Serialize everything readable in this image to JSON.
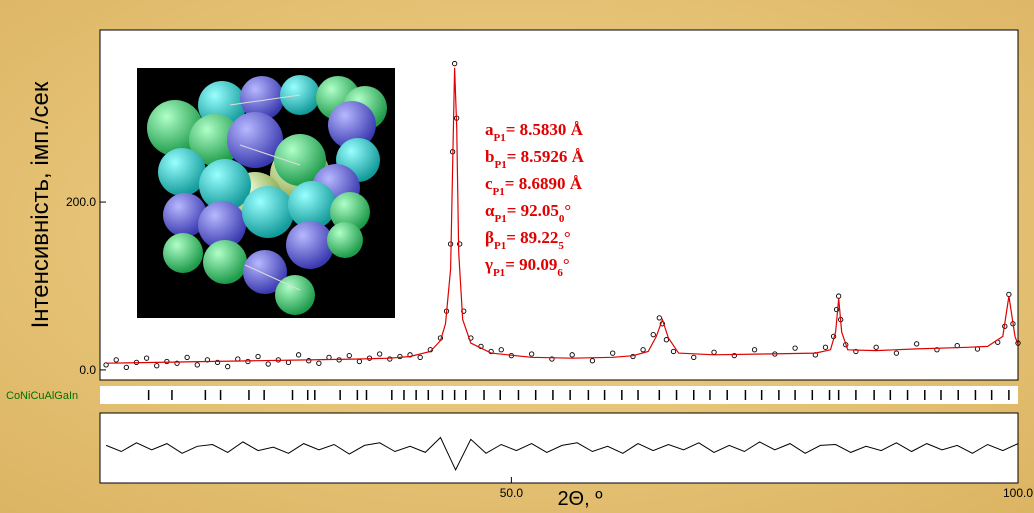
{
  "chart_data": {
    "type": "powder-diffraction",
    "xlabel": "2Θ, º",
    "ylabel": "Інтенсивність, імп./сек",
    "phase_label": "CoNiCuAlGaIn",
    "xlim": [
      9.4,
      100
    ],
    "ylim": [
      -12,
      405
    ],
    "xticks": [
      {
        "value": 50,
        "label": "50.0"
      },
      {
        "value": 100,
        "label": "100.0"
      }
    ],
    "yticks": [
      {
        "value": 0,
        "label": "0.0"
      },
      {
        "value": 200,
        "label": "200.0"
      }
    ],
    "series": [
      {
        "type": "scatter",
        "color": "#000000",
        "x": [
          10,
          11,
          12,
          13,
          14,
          15,
          16,
          17,
          18,
          19,
          20,
          21,
          22,
          23,
          24,
          25,
          26,
          27,
          28,
          29,
          30,
          31,
          32,
          33,
          34,
          35,
          36,
          37,
          38,
          39,
          40,
          41,
          42,
          43,
          43.6,
          44,
          44.2,
          44.4,
          44.6,
          44.9,
          45.3,
          46,
          47,
          48,
          49,
          50,
          52,
          54,
          56,
          58,
          60,
          62,
          63,
          64,
          64.6,
          64.9,
          65.3,
          66,
          68,
          70,
          72,
          74,
          76,
          78,
          80,
          81,
          81.8,
          82.1,
          82.3,
          82.5,
          83,
          84,
          86,
          88,
          90,
          92,
          94,
          96,
          98,
          98.7,
          99.1,
          99.5,
          100
        ],
        "values": [
          6,
          12,
          3,
          9,
          14,
          5,
          10,
          8,
          15,
          6,
          12,
          9,
          4,
          13,
          10,
          16,
          7,
          12,
          9,
          18,
          11,
          8,
          15,
          12,
          17,
          10,
          14,
          19,
          13,
          16,
          18,
          15,
          24,
          38,
          70,
          150,
          260,
          365,
          300,
          150,
          70,
          38,
          28,
          22,
          24,
          17,
          19,
          13,
          18,
          11,
          20,
          16,
          24,
          42,
          62,
          55,
          36,
          22,
          15,
          21,
          17,
          24,
          19,
          26,
          18,
          27,
          40,
          72,
          88,
          60,
          30,
          22,
          27,
          20,
          31,
          24,
          29,
          25,
          33,
          52,
          90,
          55,
          32
        ]
      },
      {
        "type": "line",
        "color": "#e00000",
        "x": [
          10,
          15,
          20,
          25,
          30,
          35,
          38,
          40,
          42,
          43,
          43.5,
          44,
          44.2,
          44.4,
          44.6,
          44.8,
          45.2,
          46,
          48,
          52,
          56,
          60,
          62,
          63.5,
          64.3,
          64.9,
          65.5,
          66.5,
          70,
          75,
          80,
          81.5,
          82,
          82.3,
          82.6,
          83.2,
          86,
          90,
          95,
          97,
          98.5,
          99.1,
          99.7,
          100
        ],
        "values": [
          8,
          9,
          10,
          11,
          12,
          13,
          14,
          16,
          22,
          35,
          55,
          120,
          240,
          360,
          290,
          140,
          60,
          32,
          20,
          15,
          14,
          15,
          17,
          22,
          40,
          60,
          38,
          20,
          18,
          19,
          20,
          24,
          45,
          85,
          45,
          24,
          23,
          25,
          27,
          28,
          40,
          88,
          40,
          30
        ]
      }
    ],
    "bragg_positions": [
      14.2,
      16.5,
      19.8,
      21.3,
      24.1,
      25.6,
      28.4,
      29.9,
      30.6,
      33.1,
      34.8,
      35.7,
      38.2,
      39.4,
      40.6,
      41.8,
      43.2,
      44.4,
      45.5,
      47.3,
      48.9,
      50.7,
      52.4,
      54.1,
      55.8,
      57.6,
      59.2,
      60.9,
      62.5,
      64.6,
      66.3,
      68.0,
      69.6,
      71.3,
      73.1,
      74.7,
      76.4,
      78.0,
      79.7,
      81.4,
      82.3,
      84.0,
      85.8,
      87.4,
      89.1,
      90.8,
      92.4,
      94.1,
      95.8,
      97.4,
      99.1
    ],
    "difference": {
      "ylim": [
        -40,
        40
      ],
      "x": [
        10,
        11.5,
        13,
        14.5,
        16,
        17.5,
        19,
        20.5,
        22,
        23.5,
        25,
        26.5,
        28,
        29.5,
        31,
        32.5,
        34,
        35.5,
        37,
        38.5,
        40,
        41.5,
        43,
        44.5,
        46,
        47.5,
        49,
        50.5,
        52,
        53.5,
        55,
        56.5,
        58,
        59.5,
        61,
        62.5,
        64,
        65.5,
        67,
        68.5,
        70,
        71.5,
        73,
        74.5,
        76,
        77.5,
        79,
        80.5,
        82,
        83.5,
        85,
        86.5,
        88,
        89.5,
        91,
        92.5,
        94,
        95.5,
        97,
        98.5,
        100
      ],
      "values": [
        3,
        -4,
        6,
        -2,
        5,
        -6,
        2,
        4,
        -5,
        7,
        -3,
        1,
        -6,
        5,
        -2,
        4,
        -7,
        3,
        6,
        -4,
        2,
        -5,
        12,
        -25,
        10,
        -6,
        4,
        -3,
        5,
        -5,
        3,
        6,
        -4,
        2,
        -6,
        5,
        -3,
        4,
        -2,
        6,
        -5,
        3,
        -4,
        7,
        -2,
        5,
        -6,
        3,
        4,
        -5,
        2,
        -3,
        6,
        -4,
        5,
        -2,
        3,
        -6,
        4,
        -3,
        5
      ]
    },
    "annotations": [
      [
        {
          "t": "a"
        },
        {
          "t": "P1",
          "sub": true
        },
        {
          "t": "= 8.5830 Å"
        }
      ],
      [
        {
          "t": "b"
        },
        {
          "t": "P1",
          "sub": true
        },
        {
          "t": "= 8.5926 Å"
        }
      ],
      [
        {
          "t": "c"
        },
        {
          "t": "P1",
          "sub": true
        },
        {
          "t": "= 8.6890 Å"
        }
      ],
      [
        {
          "t": "α"
        },
        {
          "t": "P1",
          "sub": true
        },
        {
          "t": "= 92.05"
        },
        {
          "t": "0",
          "sub": true
        },
        {
          "t": "°"
        }
      ],
      [
        {
          "t": "β"
        },
        {
          "t": "P1",
          "sub": true
        },
        {
          "t": "= 89.22"
        },
        {
          "t": "5",
          "sub": true
        },
        {
          "t": "°"
        }
      ],
      [
        {
          "t": "γ"
        },
        {
          "t": "P1",
          "sub": true
        },
        {
          "t": "= 90.09"
        },
        {
          "t": "6",
          "sub": true
        },
        {
          "t": "°"
        }
      ]
    ]
  }
}
